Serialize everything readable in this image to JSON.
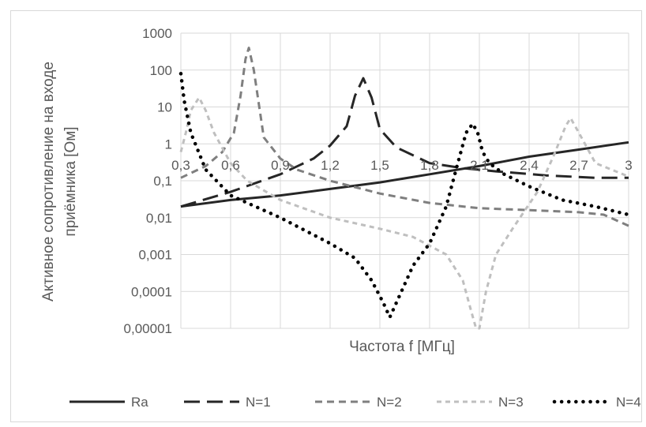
{
  "chart_data": {
    "type": "line",
    "title": "",
    "xlabel": "Частота f [МГц]",
    "ylabel": "Активное сопротивление на входе приёмника [Ом]",
    "ylabel_lines": [
      "Активное сопротивление на входе",
      "приёмника [Ом]"
    ],
    "xscale": "linear",
    "yscale": "log",
    "xlim": [
      0.3,
      3.0
    ],
    "ylim": [
      1e-05,
      1000
    ],
    "x_ticks": [
      "0,3",
      "0,6",
      "0,9",
      "1,2",
      "1,5",
      "1,8",
      "2,1",
      "2,4",
      "2,7",
      "3"
    ],
    "y_ticks": [
      "0,00001",
      "0,0001",
      "0,001",
      "0,01",
      "0,1",
      "1",
      "10",
      "100",
      "1000"
    ],
    "grid": true,
    "legend_position": "bottom",
    "series": [
      {
        "name": "Ra",
        "color": "#262626",
        "dash": "solid",
        "x": [
          0.3,
          0.6,
          0.9,
          1.2,
          1.5,
          1.8,
          2.1,
          2.4,
          2.7,
          3.0
        ],
        "y": [
          0.02,
          0.03,
          0.04,
          0.06,
          0.09,
          0.15,
          0.25,
          0.45,
          0.7,
          1.1
        ]
      },
      {
        "name": "N=1",
        "color": "#262626",
        "dash": "longdash",
        "x": [
          0.3,
          0.6,
          0.9,
          1.1,
          1.2,
          1.3,
          1.35,
          1.4,
          1.45,
          1.5,
          1.6,
          1.8,
          2.0,
          2.2,
          2.5,
          2.8,
          3.0
        ],
        "y": [
          0.02,
          0.05,
          0.15,
          0.4,
          0.9,
          3,
          20,
          60,
          18,
          2.5,
          0.8,
          0.3,
          0.22,
          0.18,
          0.14,
          0.12,
          0.12
        ]
      },
      {
        "name": "N=2",
        "color": "#7f7f7f",
        "dash": "dash",
        "x": [
          0.3,
          0.45,
          0.55,
          0.62,
          0.66,
          0.69,
          0.71,
          0.74,
          0.8,
          0.9,
          1.0,
          1.2,
          1.5,
          1.8,
          2.1,
          2.4,
          2.7,
          2.85,
          3.0
        ],
        "y": [
          0.12,
          0.25,
          0.6,
          2,
          20,
          200,
          400,
          100,
          1.5,
          0.4,
          0.2,
          0.1,
          0.045,
          0.025,
          0.018,
          0.016,
          0.014,
          0.012,
          0.006
        ]
      },
      {
        "name": "N=3",
        "color": "#bfbfbf",
        "dash": "shortdash",
        "x": [
          0.3,
          0.33,
          0.36,
          0.41,
          0.45,
          0.5,
          0.6,
          0.7,
          0.9,
          1.2,
          1.5,
          1.7,
          1.9,
          2.0,
          2.05,
          2.08,
          2.1,
          2.14,
          2.2,
          2.3,
          2.45,
          2.55,
          2.62,
          2.65,
          2.7,
          2.8,
          3.0
        ],
        "y": [
          0.6,
          2,
          8,
          18,
          8,
          2,
          0.3,
          0.1,
          0.03,
          0.01,
          0.005,
          0.003,
          0.001,
          0.0002,
          3e-05,
          1e-05,
          1e-05,
          0.0001,
          0.001,
          0.005,
          0.05,
          0.5,
          3,
          5,
          2,
          0.3,
          0.13
        ]
      },
      {
        "name": "N=4",
        "color": "#000000",
        "dash": "dots",
        "x": [
          0.3,
          0.32,
          0.36,
          0.45,
          0.6,
          0.9,
          1.2,
          1.35,
          1.45,
          1.52,
          1.56,
          1.6,
          1.7,
          1.8,
          1.9,
          1.97,
          2.02,
          2.06,
          2.09,
          2.12,
          2.16,
          2.25,
          2.4,
          2.6,
          2.8,
          3.0
        ],
        "y": [
          80,
          15,
          2,
          0.2,
          0.04,
          0.01,
          0.002,
          0.0008,
          0.0002,
          5e-05,
          2e-05,
          5e-05,
          0.0005,
          0.002,
          0.02,
          0.3,
          2,
          3.5,
          2,
          0.6,
          0.3,
          0.15,
          0.07,
          0.03,
          0.02,
          0.012
        ]
      }
    ]
  }
}
